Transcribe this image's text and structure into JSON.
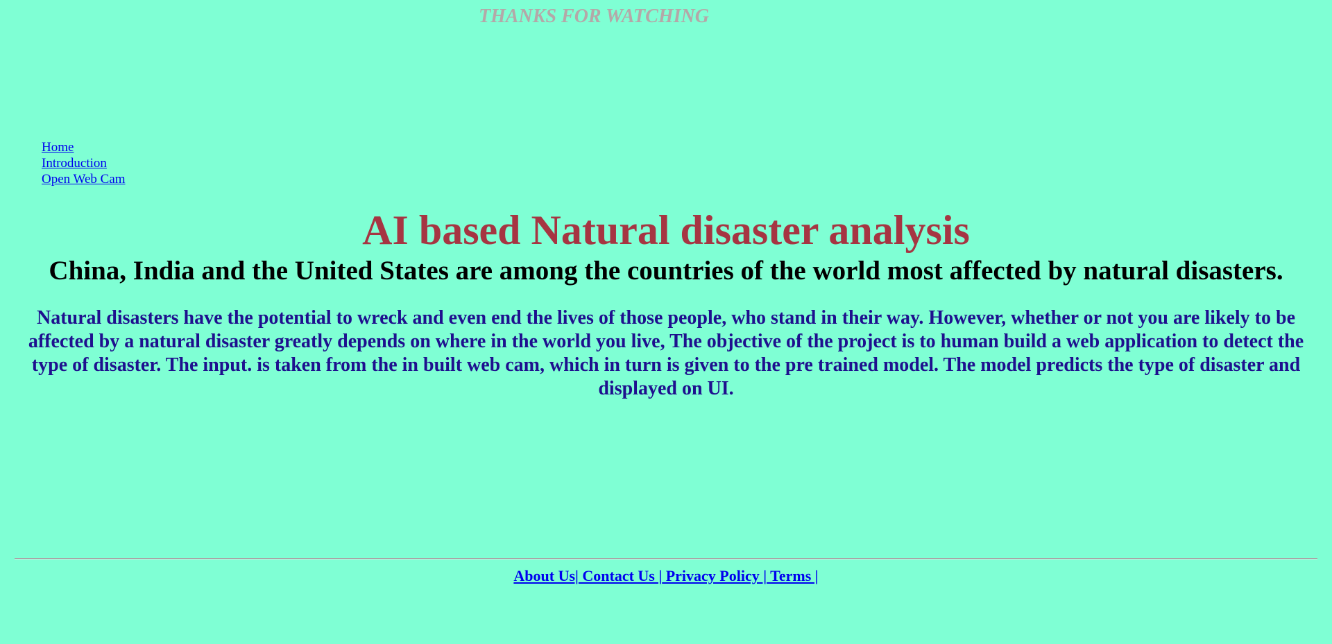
{
  "marquee": "THANKS FOR WATCHING",
  "nav": {
    "items": [
      "Home",
      "Introduction",
      "Open Web Cam"
    ]
  },
  "title": "AI based Natural disaster analysis",
  "subtitle": "China, India and the United States are among the countries of the world most affected by natural disasters.",
  "description": "Natural disasters have the potential to wreck and even end the lives of those people, who stand in their way. However, whether or not you are likely to be affected by a natural disaster greatly depends on where in the world you live, The objective of the project is to human build a web application to detect the type of disaster. The input. is taken from the in built web cam, which in turn is given to the pre trained model. The model predicts the type of disaster and displayed on UI.",
  "footer": {
    "links": [
      "About Us|",
      " Contact Us |",
      " Privacy Policy |",
      " Terms |"
    ]
  }
}
